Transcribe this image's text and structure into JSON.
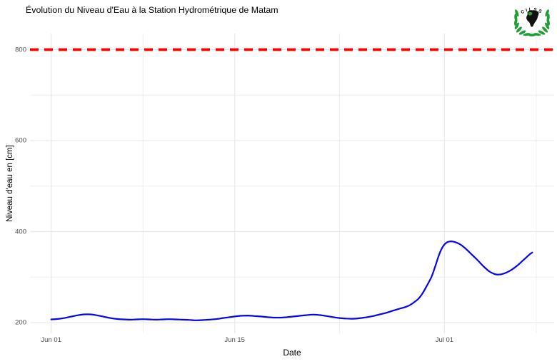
{
  "header": {
    "title": "Évolution du Niveau d'Eau à la Station Hydrométrique de Matam"
  },
  "logo": {
    "name": "CILSS",
    "text": "CILSS"
  },
  "chart_data": {
    "type": "line",
    "title": "Évolution du Niveau d'Eau à la Station Hydrométrique de Matam",
    "xlabel": "Date",
    "ylabel": "Niveau d'eau en [cm]",
    "x_axis_kind": "date, days counted from Jun 01",
    "x_ticks": [
      {
        "day": 0,
        "label": "Jun 01"
      },
      {
        "day": 14,
        "label": "Jun 15"
      },
      {
        "day": 30,
        "label": "Jul 01"
      }
    ],
    "x_minor_days": [
      7,
      22,
      37
    ],
    "y_ticks": [
      200,
      400,
      600,
      800
    ],
    "y_minor_ticks": [
      300,
      500,
      700
    ],
    "ylim": [
      176,
      836
    ],
    "xlim_days": [
      -1.62,
      38.43
    ],
    "grid": "major+minor, light gray, no axis ticks (theme_minimal)",
    "legend": "none",
    "threshold_line": {
      "value": 800,
      "color": "#FF0000",
      "style": "dashed"
    },
    "series": [
      {
        "name": "Niveau d'eau",
        "color": "#0404EE",
        "points": [
          [
            0,
            207
          ],
          [
            0.5,
            208
          ],
          [
            1,
            210
          ],
          [
            1.5,
            213
          ],
          [
            2,
            216
          ],
          [
            2.5,
            218
          ],
          [
            3,
            218
          ],
          [
            3.5,
            216
          ],
          [
            4,
            213
          ],
          [
            4.5,
            210
          ],
          [
            5,
            208
          ],
          [
            5.5,
            207
          ],
          [
            6,
            206.5
          ],
          [
            6.5,
            207
          ],
          [
            7,
            207.5
          ],
          [
            7.5,
            207
          ],
          [
            8,
            206.5
          ],
          [
            8.5,
            207
          ],
          [
            9,
            207.5
          ],
          [
            9.5,
            207
          ],
          [
            10,
            206.5
          ],
          [
            10.5,
            206
          ],
          [
            11,
            205
          ],
          [
            11.5,
            205.5
          ],
          [
            12,
            206.5
          ],
          [
            12.5,
            207.5
          ],
          [
            13,
            209.5
          ],
          [
            13.5,
            211.5
          ],
          [
            14,
            213.5
          ],
          [
            14.5,
            215
          ],
          [
            15,
            215.5
          ],
          [
            15.5,
            214.5
          ],
          [
            16,
            213.5
          ],
          [
            16.5,
            212
          ],
          [
            17,
            211
          ],
          [
            17.5,
            211
          ],
          [
            18,
            212
          ],
          [
            18.5,
            213.5
          ],
          [
            19,
            215
          ],
          [
            19.5,
            216.5
          ],
          [
            20,
            217.5
          ],
          [
            20.5,
            216.5
          ],
          [
            21,
            214.5
          ],
          [
            21.5,
            212
          ],
          [
            22,
            210
          ],
          [
            22.5,
            209
          ],
          [
            23,
            208.5
          ],
          [
            23.5,
            209.5
          ],
          [
            24,
            211.5
          ],
          [
            24.5,
            214
          ],
          [
            25,
            217.5
          ],
          [
            25.5,
            221
          ],
          [
            26,
            225.5
          ],
          [
            26.5,
            230
          ],
          [
            27,
            234
          ],
          [
            27.3,
            237.5
          ],
          [
            27.6,
            243
          ],
          [
            28,
            252
          ],
          [
            28.3,
            263
          ],
          [
            28.6,
            278
          ],
          [
            29,
            300
          ],
          [
            29.3,
            324
          ],
          [
            29.6,
            350
          ],
          [
            29.9,
            368
          ],
          [
            30.2,
            376.5
          ],
          [
            30.5,
            378.5
          ],
          [
            30.8,
            377
          ],
          [
            31.2,
            372
          ],
          [
            31.6,
            363
          ],
          [
            32,
            352
          ],
          [
            32.5,
            338
          ],
          [
            33,
            323
          ],
          [
            33.4,
            313
          ],
          [
            33.8,
            307
          ],
          [
            34.1,
            305.5
          ],
          [
            34.5,
            307.5
          ],
          [
            35,
            314
          ],
          [
            35.5,
            324
          ],
          [
            36,
            337
          ],
          [
            36.5,
            350
          ],
          [
            36.7,
            354
          ]
        ]
      }
    ]
  },
  "colors": {
    "background": "#FFFFFF",
    "grid": "#E9E9E9",
    "tick_label": "#4D4D4D",
    "axis_title": "#000000",
    "line": "#0404EE",
    "threshold": "#FF0000",
    "logo_green": "#1E9E33",
    "logo_black": "#111111"
  }
}
